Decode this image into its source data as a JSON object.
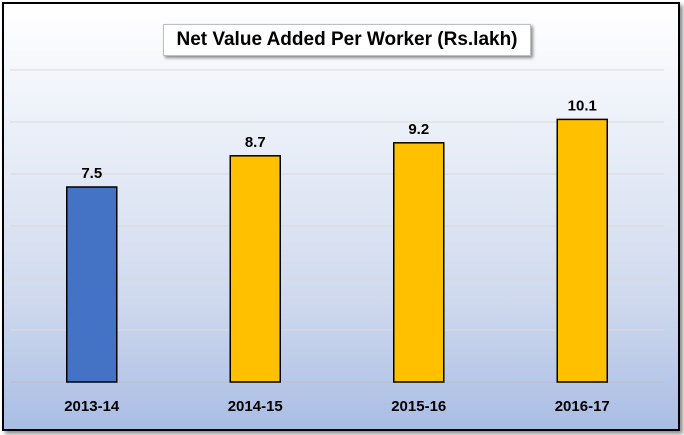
{
  "chart_data": {
    "type": "bar",
    "title": "Net Value Added Per Worker (Rs.lakh)",
    "xlabel": "",
    "ylabel": "",
    "categories": [
      "2013-14",
      "2014-15",
      "2015-16",
      "2016-17"
    ],
    "values": [
      7.5,
      8.7,
      9.2,
      10.1
    ],
    "data_labels": [
      "7.5",
      "8.7",
      "9.2",
      "10.1"
    ],
    "ylim": [
      0,
      12
    ],
    "grid": true,
    "legend": "none",
    "colors": {
      "highlight": "#4472c4",
      "default": "#ffc000",
      "bar_border": "#000000",
      "gridline": "#d9d9d9"
    },
    "bar_colors": [
      "#4472c4",
      "#ffc000",
      "#ffc000",
      "#ffc000"
    ]
  }
}
